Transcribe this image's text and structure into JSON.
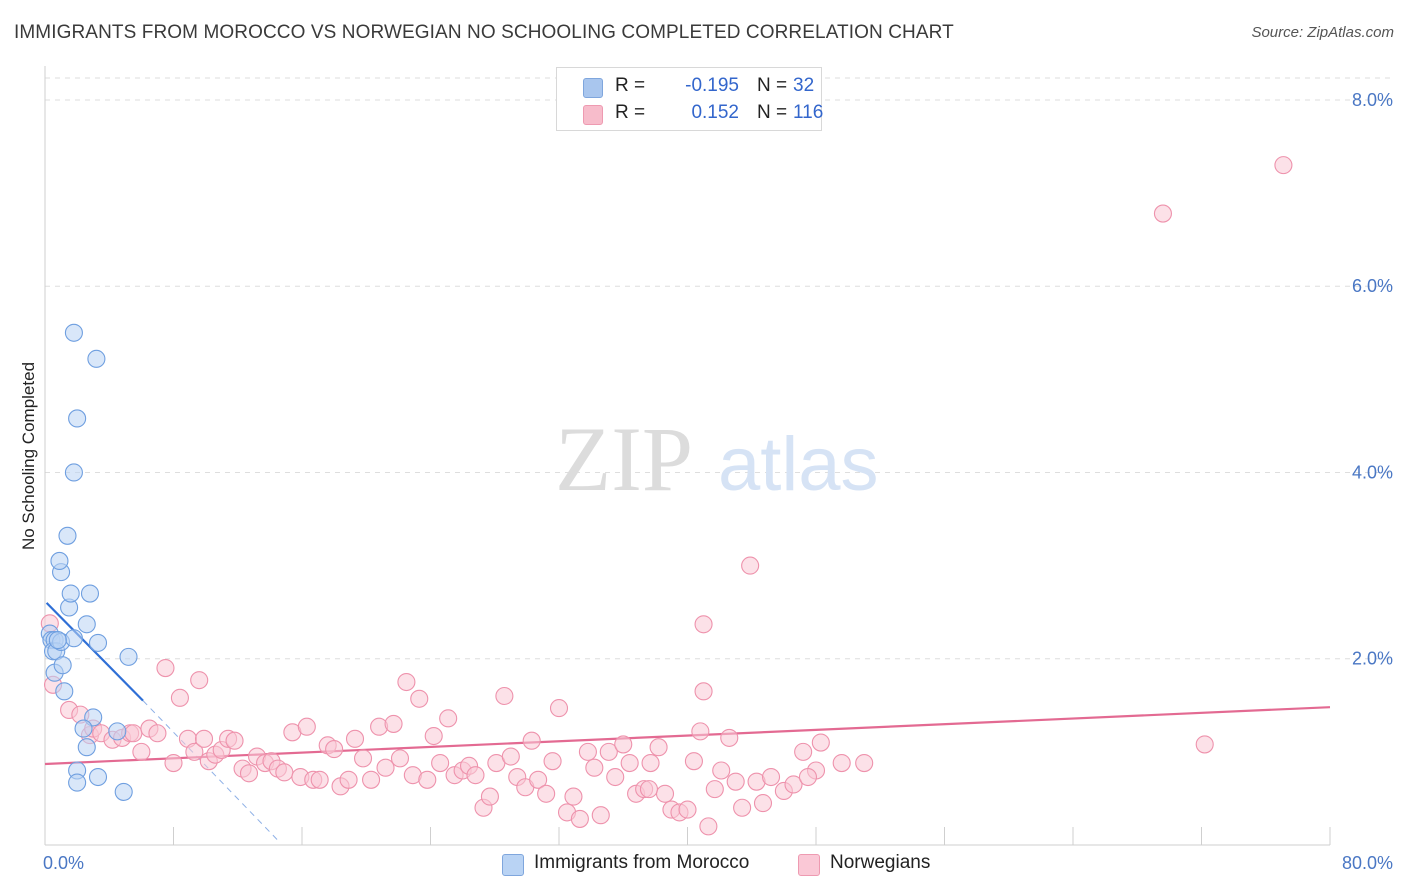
{
  "title": "IMMIGRANTS FROM MOROCCO VS NORWEGIAN NO SCHOOLING COMPLETED CORRELATION CHART",
  "source": "Source: ZipAtlas.com",
  "watermark": {
    "zip": "ZIP",
    "atlas": "atlas"
  },
  "legend": {
    "series": [
      {
        "r_label": "R =",
        "r_value": "-0.195",
        "n_label": "N =",
        "n_value": "32",
        "color": "#a9c6ee",
        "border": "#7fa6dd"
      },
      {
        "r_label": "R =",
        "r_value": "0.152",
        "n_label": "N =",
        "n_value": "116",
        "color": "#f7bccb",
        "border": "#ee9ab1"
      }
    ]
  },
  "bottom_legend": [
    {
      "label": "Immigrants from Morocco",
      "color": "#b9d3f4",
      "border": "#7fa6dd"
    },
    {
      "label": "Norwegians",
      "color": "#fac8d6",
      "border": "#ee9ab1"
    }
  ],
  "chart_data": {
    "type": "scatter",
    "title": "IMMIGRANTS FROM MOROCCO VS NORWEGIAN NO SCHOOLING COMPLETED CORRELATION CHART",
    "xlabel": "",
    "ylabel": "No Schooling Completed",
    "xlim": [
      0,
      80
    ],
    "ylim": [
      0,
      8.3
    ],
    "x_tick_labels": [
      "0.0%",
      "80.0%"
    ],
    "y_ticks": [
      2,
      4,
      6,
      8
    ],
    "y_tick_labels": [
      "2.0%",
      "4.0%",
      "6.0%",
      "8.0%"
    ],
    "grid": true,
    "series": [
      {
        "name": "Immigrants from Morocco",
        "color": "#6f9fe0",
        "fill": "#b9d3f4",
        "trend": {
          "x": [
            0.1,
            6.1
          ],
          "y": [
            2.6,
            1.55
          ],
          "color": "#2f6fd6"
        },
        "trend_ext": {
          "x": [
            6.1,
            14.5
          ],
          "y": [
            1.55,
            0.05
          ],
          "color": "#8eb0e6"
        },
        "points": [
          [
            0.3,
            2.27
          ],
          [
            0.4,
            2.2
          ],
          [
            0.6,
            2.2
          ],
          [
            0.5,
            2.08
          ],
          [
            0.7,
            2.08
          ],
          [
            0.6,
            1.85
          ],
          [
            1.0,
            2.18
          ],
          [
            1.1,
            1.93
          ],
          [
            1.2,
            1.65
          ],
          [
            1.0,
            2.93
          ],
          [
            0.9,
            3.05
          ],
          [
            1.4,
            3.32
          ],
          [
            1.5,
            2.55
          ],
          [
            1.6,
            2.7
          ],
          [
            1.8,
            2.22
          ],
          [
            1.8,
            5.5
          ],
          [
            2.0,
            4.58
          ],
          [
            1.8,
            4.0
          ],
          [
            2.6,
            2.37
          ],
          [
            2.8,
            2.7
          ],
          [
            3.0,
            1.37
          ],
          [
            3.3,
            2.17
          ],
          [
            3.2,
            5.22
          ],
          [
            5.2,
            2.02
          ],
          [
            2.4,
            1.25
          ],
          [
            2.6,
            1.05
          ],
          [
            2.0,
            0.8
          ],
          [
            2.0,
            0.67
          ],
          [
            3.3,
            0.73
          ],
          [
            4.5,
            1.22
          ],
          [
            4.9,
            0.57
          ],
          [
            0.8,
            2.2
          ]
        ]
      },
      {
        "name": "Norwegians",
        "color": "#ee92ac",
        "fill": "#fac8d6",
        "trend": {
          "x": [
            0,
            80
          ],
          "y": [
            0.87,
            1.48
          ],
          "color": "#e36a92"
        },
        "points": [
          [
            0.3,
            2.38
          ],
          [
            0.5,
            1.72
          ],
          [
            1.5,
            1.45
          ],
          [
            2.2,
            1.4
          ],
          [
            2.8,
            1.18
          ],
          [
            3.0,
            1.25
          ],
          [
            3.5,
            1.2
          ],
          [
            4.2,
            1.13
          ],
          [
            4.8,
            1.15
          ],
          [
            5.3,
            1.2
          ],
          [
            5.5,
            1.2
          ],
          [
            6.0,
            1.0
          ],
          [
            6.5,
            1.25
          ],
          [
            7.0,
            1.2
          ],
          [
            7.5,
            1.9
          ],
          [
            8.0,
            0.88
          ],
          [
            8.4,
            1.58
          ],
          [
            8.9,
            1.14
          ],
          [
            9.3,
            1.0
          ],
          [
            9.6,
            1.77
          ],
          [
            9.9,
            1.14
          ],
          [
            10.2,
            0.9
          ],
          [
            10.6,
            0.97
          ],
          [
            11.0,
            1.02
          ],
          [
            11.4,
            1.14
          ],
          [
            11.8,
            1.12
          ],
          [
            12.3,
            0.82
          ],
          [
            12.7,
            0.77
          ],
          [
            13.2,
            0.95
          ],
          [
            13.7,
            0.88
          ],
          [
            14.1,
            0.9
          ],
          [
            14.5,
            0.82
          ],
          [
            14.9,
            0.78
          ],
          [
            15.4,
            1.21
          ],
          [
            15.9,
            0.73
          ],
          [
            16.3,
            1.27
          ],
          [
            16.7,
            0.7
          ],
          [
            17.1,
            0.7
          ],
          [
            17.6,
            1.07
          ],
          [
            18.0,
            1.03
          ],
          [
            18.4,
            0.63
          ],
          [
            18.9,
            0.7
          ],
          [
            19.3,
            1.14
          ],
          [
            19.8,
            0.93
          ],
          [
            20.3,
            0.7
          ],
          [
            20.8,
            1.27
          ],
          [
            21.2,
            0.83
          ],
          [
            21.7,
            1.3
          ],
          [
            22.1,
            0.93
          ],
          [
            22.5,
            1.75
          ],
          [
            22.9,
            0.75
          ],
          [
            23.3,
            1.57
          ],
          [
            23.8,
            0.7
          ],
          [
            24.2,
            1.17
          ],
          [
            24.6,
            0.88
          ],
          [
            25.1,
            1.36
          ],
          [
            25.5,
            0.75
          ],
          [
            26.0,
            0.8
          ],
          [
            26.4,
            0.85
          ],
          [
            26.8,
            0.75
          ],
          [
            27.3,
            0.4
          ],
          [
            27.7,
            0.52
          ],
          [
            28.1,
            0.88
          ],
          [
            28.6,
            1.6
          ],
          [
            29.0,
            0.95
          ],
          [
            29.4,
            0.73
          ],
          [
            29.9,
            0.62
          ],
          [
            30.3,
            1.12
          ],
          [
            30.7,
            0.7
          ],
          [
            31.2,
            0.55
          ],
          [
            31.6,
            0.9
          ],
          [
            32.0,
            1.47
          ],
          [
            32.5,
            0.35
          ],
          [
            32.9,
            0.52
          ],
          [
            33.3,
            0.28
          ],
          [
            33.8,
            1.0
          ],
          [
            34.2,
            0.83
          ],
          [
            34.6,
            0.32
          ],
          [
            35.1,
            1.0
          ],
          [
            35.5,
            0.73
          ],
          [
            36.0,
            1.08
          ],
          [
            36.4,
            0.88
          ],
          [
            36.8,
            0.55
          ],
          [
            37.3,
            0.6
          ],
          [
            37.7,
            0.88
          ],
          [
            38.2,
            1.05
          ],
          [
            38.6,
            0.55
          ],
          [
            39.0,
            0.38
          ],
          [
            39.5,
            0.35
          ],
          [
            40.0,
            0.38
          ],
          [
            40.4,
            0.9
          ],
          [
            40.8,
            1.22
          ],
          [
            41.3,
            0.2
          ],
          [
            41.7,
            0.6
          ],
          [
            42.1,
            0.8
          ],
          [
            42.6,
            1.15
          ],
          [
            43.0,
            0.68
          ],
          [
            43.4,
            0.4
          ],
          [
            43.9,
            3.0
          ],
          [
            44.3,
            0.68
          ],
          [
            44.7,
            0.45
          ],
          [
            45.2,
            0.73
          ],
          [
            46.0,
            0.58
          ],
          [
            46.6,
            0.65
          ],
          [
            47.2,
            1.0
          ],
          [
            48.0,
            0.8
          ],
          [
            47.5,
            0.73
          ],
          [
            48.3,
            1.1
          ],
          [
            49.6,
            0.88
          ],
          [
            51.0,
            0.88
          ],
          [
            41.0,
            2.37
          ],
          [
            41.0,
            1.65
          ],
          [
            37.6,
            0.6
          ],
          [
            72.2,
            1.08
          ],
          [
            69.6,
            6.78
          ],
          [
            77.1,
            7.3
          ]
        ]
      }
    ]
  }
}
